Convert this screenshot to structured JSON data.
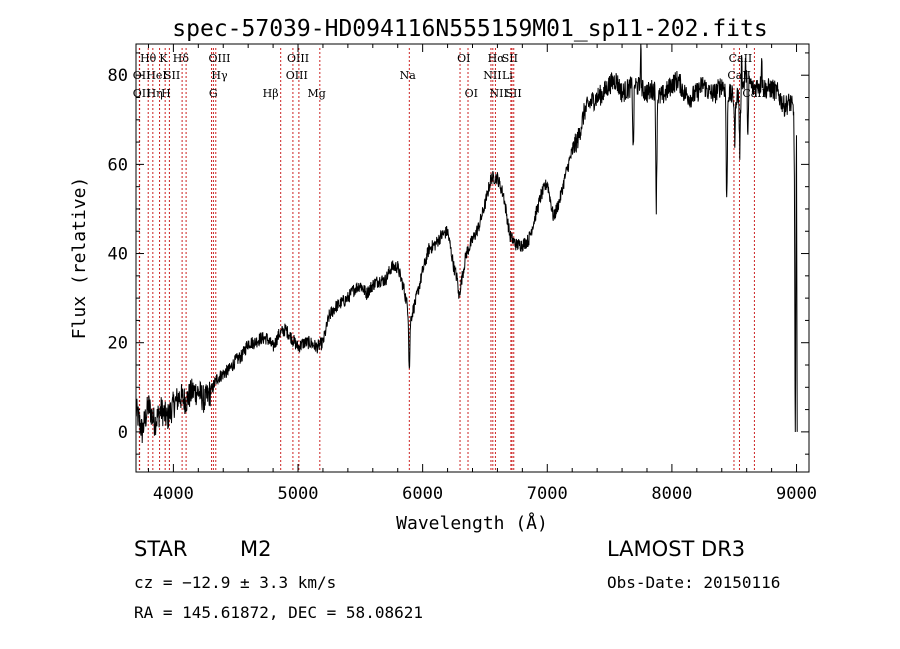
{
  "chart_data": {
    "type": "line",
    "title": "spec-57039-HD094116N555159M01_sp11-202.fits",
    "xlabel": "Wavelength (Å)",
    "ylabel": "Flux (relative)",
    "xlim": [
      3700,
      9100
    ],
    "ylim": [
      -9,
      87
    ],
    "xticks": [
      4000,
      5000,
      6000,
      7000,
      8000,
      9000
    ],
    "yticks": [
      0,
      20,
      40,
      60,
      80
    ],
    "grid": false,
    "series": [
      {
        "name": "flux",
        "anchors": [
          [
            3700,
            5
          ],
          [
            3750,
            0
          ],
          [
            3800,
            6
          ],
          [
            3850,
            2
          ],
          [
            3900,
            5
          ],
          [
            3950,
            3
          ],
          [
            4000,
            6
          ],
          [
            4050,
            8
          ],
          [
            4100,
            7
          ],
          [
            4150,
            9
          ],
          [
            4200,
            9
          ],
          [
            4250,
            7
          ],
          [
            4300,
            9
          ],
          [
            4350,
            12
          ],
          [
            4400,
            13
          ],
          [
            4450,
            14
          ],
          [
            4500,
            16
          ],
          [
            4550,
            17
          ],
          [
            4600,
            20
          ],
          [
            4650,
            20
          ],
          [
            4700,
            21
          ],
          [
            4750,
            21
          ],
          [
            4800,
            19
          ],
          [
            4850,
            22
          ],
          [
            4900,
            23
          ],
          [
            4950,
            21
          ],
          [
            5000,
            19
          ],
          [
            5050,
            20
          ],
          [
            5100,
            20
          ],
          [
            5150,
            19
          ],
          [
            5200,
            20
          ],
          [
            5250,
            26
          ],
          [
            5300,
            28
          ],
          [
            5350,
            29
          ],
          [
            5400,
            30
          ],
          [
            5450,
            32
          ],
          [
            5500,
            33
          ],
          [
            5550,
            31
          ],
          [
            5600,
            33
          ],
          [
            5650,
            34
          ],
          [
            5700,
            34
          ],
          [
            5750,
            37
          ],
          [
            5800,
            37
          ],
          [
            5850,
            32
          ],
          [
            5900,
            25
          ],
          [
            5950,
            30
          ],
          [
            6000,
            36
          ],
          [
            6050,
            41
          ],
          [
            6100,
            42
          ],
          [
            6150,
            44
          ],
          [
            6200,
            45
          ],
          [
            6250,
            37
          ],
          [
            6300,
            32
          ],
          [
            6350,
            40
          ],
          [
            6400,
            43
          ],
          [
            6450,
            46
          ],
          [
            6500,
            51
          ],
          [
            6550,
            57
          ],
          [
            6600,
            57
          ],
          [
            6650,
            53
          ],
          [
            6700,
            44
          ],
          [
            6750,
            42
          ],
          [
            6800,
            42
          ],
          [
            6850,
            43
          ],
          [
            6900,
            48
          ],
          [
            6950,
            53
          ],
          [
            7000,
            56
          ],
          [
            7050,
            48
          ],
          [
            7100,
            52
          ],
          [
            7150,
            58
          ],
          [
            7200,
            63
          ],
          [
            7250,
            66
          ],
          [
            7300,
            72
          ],
          [
            7350,
            74
          ],
          [
            7400,
            75
          ],
          [
            7450,
            76
          ],
          [
            7500,
            78
          ],
          [
            7550,
            79
          ],
          [
            7600,
            76
          ],
          [
            7650,
            77
          ],
          [
            7700,
            78
          ],
          [
            7750,
            77
          ],
          [
            7800,
            76
          ],
          [
            7850,
            77
          ],
          [
            7900,
            75
          ],
          [
            7950,
            76
          ],
          [
            8000,
            78
          ],
          [
            8050,
            79
          ],
          [
            8100,
            76
          ],
          [
            8150,
            75
          ],
          [
            8200,
            76
          ],
          [
            8250,
            78
          ],
          [
            8300,
            76
          ],
          [
            8350,
            76
          ],
          [
            8400,
            78
          ],
          [
            8450,
            76
          ],
          [
            8500,
            75
          ],
          [
            8550,
            76
          ],
          [
            8600,
            80
          ],
          [
            8650,
            77
          ],
          [
            8700,
            78
          ],
          [
            8750,
            77
          ],
          [
            8800,
            77
          ],
          [
            8850,
            76
          ],
          [
            8900,
            73
          ],
          [
            8950,
            74
          ],
          [
            9000,
            70
          ]
        ],
        "dips": [
          [
            5893,
            14
          ],
          [
            6290,
            30
          ],
          [
            7690,
            63
          ],
          [
            7875,
            51
          ],
          [
            8440,
            51
          ],
          [
            8505,
            66
          ],
          [
            8545,
            63
          ],
          [
            8610,
            67
          ],
          [
            8990,
            0
          ]
        ],
        "spikes": [
          [
            7750,
            88
          ],
          [
            8560,
            86
          ],
          [
            8720,
            85
          ],
          [
            8590,
            82
          ]
        ]
      }
    ],
    "line_markers": [
      {
        "label": "Hθ",
        "x": 3798,
        "row": 0,
        "lx": 3798
      },
      {
        "label": "OII",
        "x": 3727,
        "row": 1,
        "lx": 3745
      },
      {
        "label": "OII",
        "x": 3729,
        "row": 2,
        "lx": 3745
      },
      {
        "label": "Hη",
        "x": 3835,
        "row": 2,
        "lx": 3850
      },
      {
        "label": "HeI",
        "x": 3889,
        "row": 1,
        "lx": 3865
      },
      {
        "label": "K",
        "x": 3934,
        "row": 0,
        "lx": 3920
      },
      {
        "label": "H",
        "x": 3968,
        "row": 2,
        "lx": 3940
      },
      {
        "label": "SII",
        "x": 4070,
        "row": 1,
        "lx": 3990
      },
      {
        "label": "Hδ",
        "x": 4102,
        "row": 0,
        "lx": 4060
      },
      {
        "label": "OIII",
        "x": 4321,
        "row": 0,
        "lx": 4370
      },
      {
        "label": "Hγ",
        "x": 4340,
        "row": 1,
        "lx": 4370
      },
      {
        "label": "G",
        "x": 4306,
        "row": 2,
        "lx": 4320
      },
      {
        "label": "Hβ",
        "x": 4861,
        "row": 2,
        "lx": 4780
      },
      {
        "label": "OIII",
        "x": 4959,
        "row": 0,
        "lx": 5000
      },
      {
        "label": "OIII",
        "x": 5007,
        "row": 1,
        "lx": 4990
      },
      {
        "label": "Mg",
        "x": 5175,
        "row": 2,
        "lx": 5150
      },
      {
        "label": "Na",
        "x": 5893,
        "row": 1,
        "lx": 5880
      },
      {
        "label": "OI",
        "x": 6300,
        "row": 0,
        "lx": 6330
      },
      {
        "label": "OI",
        "x": 6364,
        "row": 2,
        "lx": 6390
      },
      {
        "label": "Hα",
        "x": 6563,
        "row": 0,
        "lx": 6590
      },
      {
        "label": "NII",
        "x": 6548,
        "row": 1,
        "lx": 6560
      },
      {
        "label": "NII",
        "x": 6584,
        "row": 2,
        "lx": 6610
      },
      {
        "label": "SII",
        "x": 6717,
        "row": 0,
        "lx": 6700
      },
      {
        "label": "Li",
        "x": 6708,
        "row": 1,
        "lx": 6680
      },
      {
        "label": "SII",
        "x": 6731,
        "row": 2,
        "lx": 6730
      },
      {
        "label": "CaII",
        "x": 8498,
        "row": 0,
        "lx": 8550
      },
      {
        "label": "CaII",
        "x": 8542,
        "row": 1,
        "lx": 8540
      },
      {
        "label": "CaII",
        "x": 8662,
        "row": 2,
        "lx": 8660
      }
    ]
  },
  "info": {
    "object_class": "STAR",
    "subclass": "M2",
    "survey": "LAMOST DR3",
    "cz": "cz = −12.9 ± 3.3 km/s",
    "obs_date": "Obs-Date: 20150116",
    "coords": "RA = 145.61872, DEC =  58.08621"
  },
  "colors": {
    "spectrum": "#000000",
    "marker_line": "#cc2222",
    "axis": "#000000",
    "background": "#ffffff"
  }
}
